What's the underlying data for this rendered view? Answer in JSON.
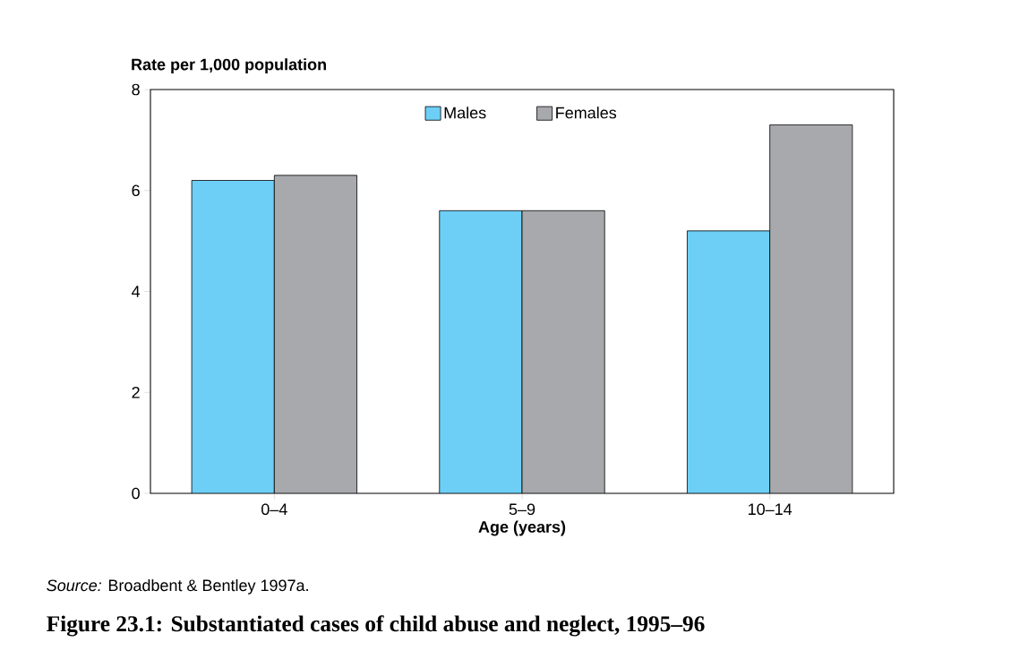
{
  "chart_data": {
    "type": "bar",
    "title": "Figure 23.1: Substantiated cases of child abuse and neglect, 1995–96",
    "ylabel": "Rate per 1,000 population",
    "xlabel": "Age (years)",
    "annotations": [
      "*Source:*  Broadbent & Bentley 1997a."
    ],
    "categories": [
      "0–4",
      "5–9",
      "10–14"
    ],
    "series": [
      {
        "name": "Males",
        "color": "#6dcff6",
        "values": [
          6.2,
          5.6,
          5.2
        ]
      },
      {
        "name": "Females",
        "color": "#a7a9ac",
        "values": [
          6.3,
          5.6,
          7.3
        ]
      }
    ],
    "ylim": [
      0,
      8
    ],
    "yticks": [
      0,
      2,
      4,
      6,
      8
    ],
    "grid": false,
    "legend": "top"
  }
}
